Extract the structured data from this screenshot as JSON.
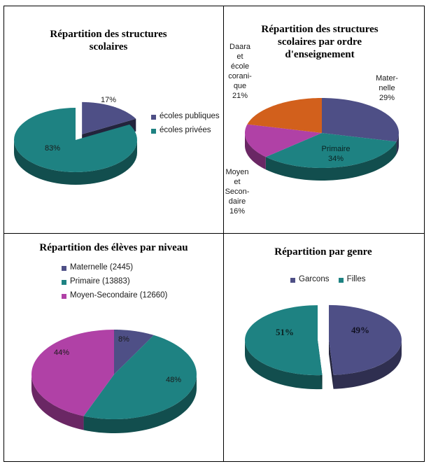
{
  "colors": {
    "navy": "#4e4f86",
    "teal": "#1e8282",
    "orange": "#d2601c",
    "magenta": "#b041a6"
  },
  "chart_data": [
    {
      "type": "pie",
      "title": "Répartition des structures scolaires",
      "slices": [
        {
          "label": "écoles publiques",
          "value": 17,
          "data_label": "17%",
          "color": "#4e4f86",
          "exploded": true
        },
        {
          "label": "écoles privées",
          "value": 83,
          "data_label": "83%",
          "color": "#1e8282",
          "exploded": false
        }
      ],
      "legend": [
        "écoles publiques",
        "écoles privées"
      ],
      "legend_position": "right"
    },
    {
      "type": "pie",
      "title": "Répartition des structures scolaires par ordre d'enseignement",
      "slices": [
        {
          "label": "Maternelle",
          "value": 29,
          "data_label": "Mater-\nnelle\n29%",
          "color": "#4e4f86"
        },
        {
          "label": "Primaire",
          "value": 34,
          "data_label": "Primaire\n34%",
          "color": "#1e8282"
        },
        {
          "label": "Moyen et Secondaire",
          "value": 16,
          "data_label": "Moyen\net\nSecon-\ndaire\n16%",
          "color": "#b041a6"
        },
        {
          "label": "Daara et école coranique",
          "value": 21,
          "data_label": "Daara\net\nécole\ncorani-\nque\n21%",
          "color": "#d2601c"
        }
      ]
    },
    {
      "type": "pie",
      "title": "Répartition des élèves par niveau",
      "slices": [
        {
          "label": "Maternelle (2445)",
          "value": 8,
          "data_label": "8%",
          "color": "#4e4f86"
        },
        {
          "label": "Primaire (13883)",
          "value": 48,
          "data_label": "48%",
          "color": "#1e8282"
        },
        {
          "label": "Moyen-Secondaire (12660)",
          "value": 44,
          "data_label": "44%",
          "color": "#b041a6"
        }
      ],
      "legend": [
        "Maternelle (2445)",
        "Primaire (13883)",
        "Moyen-Secondaire (12660)"
      ],
      "legend_position": "top"
    },
    {
      "type": "pie",
      "title": "Répartition par genre",
      "slices": [
        {
          "label": "Garcons",
          "value": 49,
          "data_label": "49%",
          "color": "#4e4f86",
          "exploded": true
        },
        {
          "label": "Filles",
          "value": 51,
          "data_label": "51%",
          "color": "#1e8282",
          "exploded": true
        }
      ],
      "legend": [
        "Garcons",
        "Filles"
      ],
      "legend_position": "top"
    }
  ]
}
